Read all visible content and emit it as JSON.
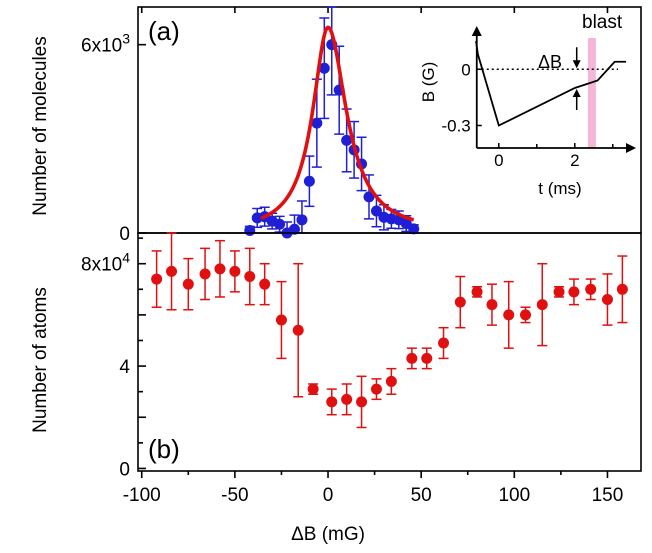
{
  "chart_data": [
    {
      "panel_label": "(a)",
      "type": "scatter",
      "ylabel": "Number of molecules",
      "ylim": [
        0,
        7200
      ],
      "xlim": [
        -102,
        168
      ],
      "y_ticks": [
        {
          "value": 0,
          "label": "0"
        },
        {
          "value": 6000,
          "label": "6x10^3"
        }
      ],
      "grid": false,
      "series": [
        {
          "kind": "points_with_error_bars",
          "color": "#1f1fd6",
          "x": [
            -42,
            -38,
            -34,
            -30,
            -26,
            -22,
            -18,
            -14,
            -10,
            -6,
            -2,
            2,
            6,
            10,
            14,
            18,
            22,
            26,
            30,
            34,
            38,
            42,
            46
          ],
          "y": [
            80,
            480,
            520,
            380,
            280,
            0,
            120,
            420,
            1650,
            3500,
            5250,
            6000,
            4550,
            2950,
            2650,
            2200,
            1150,
            700,
            500,
            450,
            420,
            300,
            130
          ],
          "yerr": [
            130,
            300,
            300,
            250,
            250,
            350,
            450,
            600,
            800,
            1400,
            1600,
            1600,
            1400,
            1000,
            900,
            850,
            700,
            500,
            400,
            300,
            280,
            250,
            130
          ]
        },
        {
          "kind": "fit_curve",
          "color": "#e01010",
          "center": 0,
          "amplitude": 6550,
          "width_left": 10,
          "width_right": 12
        }
      ],
      "inset": {
        "title": "blast",
        "xlabel": "t (ms)",
        "ylabel": "B (G)",
        "annotation": "ΔB",
        "x_ticks": [
          {
            "value": 0,
            "label": "0"
          },
          {
            "value": 2,
            "label": "2"
          }
        ],
        "y_ticks": [
          {
            "value": 0,
            "label": "0"
          },
          {
            "value": -0.3,
            "label": "-0.3"
          }
        ],
        "xlim": [
          -0.6,
          3.4
        ],
        "ylim": [
          -0.42,
          0.22
        ],
        "blast_time": 2.45,
        "curve": {
          "t": [
            -0.6,
            -0.55,
            0.0,
            2.0,
            2.6,
            3.05,
            3.35
          ],
          "b": [
            0.15,
            0.08,
            -0.3,
            -0.1,
            -0.06,
            0.04,
            0.04
          ]
        },
        "reference_line_b": 0
      }
    },
    {
      "panel_label": "(b)",
      "type": "scatter",
      "xlabel": "ΔB (mG)",
      "ylabel": "Number of atoms",
      "xlim": [
        -102,
        168
      ],
      "ylim": [
        -0.1,
        9.2
      ],
      "y_unit_note": "values in units of 10^4",
      "y_ticks": [
        {
          "value": 0,
          "label": "0"
        },
        {
          "value": 4,
          "label": "4"
        },
        {
          "value": 8,
          "label": "8x10^4"
        }
      ],
      "x_ticks": [
        {
          "value": -100,
          "label": "-100"
        },
        {
          "value": -50,
          "label": "-50"
        },
        {
          "value": 0,
          "label": "0"
        },
        {
          "value": 50,
          "label": "50"
        },
        {
          "value": 100,
          "label": "100"
        },
        {
          "value": 150,
          "label": "150"
        }
      ],
      "grid": false,
      "series": [
        {
          "kind": "points_with_error_bars",
          "color": "#e01010",
          "x": [
            -92,
            -84,
            -75,
            -66,
            -58,
            -50,
            -42,
            -34,
            -25,
            -16,
            -8,
            2,
            10,
            18,
            26,
            34,
            45,
            53,
            62,
            71,
            80,
            88,
            97,
            106,
            115,
            124,
            132,
            141,
            150,
            158
          ],
          "y": [
            7.4,
            7.7,
            7.2,
            7.6,
            7.8,
            7.7,
            7.5,
            7.2,
            5.8,
            5.4,
            3.1,
            2.6,
            2.7,
            2.6,
            3.1,
            3.4,
            4.3,
            4.3,
            4.9,
            6.5,
            6.9,
            6.4,
            6.0,
            6.0,
            6.4,
            6.9,
            6.9,
            7.0,
            6.6,
            7.0
          ],
          "yerr": [
            1.1,
            1.5,
            1.0,
            1.0,
            1.1,
            0.8,
            1.1,
            0.8,
            1.5,
            2.6,
            0.2,
            0.5,
            0.6,
            1.0,
            0.4,
            0.5,
            0.4,
            0.4,
            0.6,
            1.0,
            0.2,
            0.8,
            1.3,
            0.3,
            1.6,
            0.2,
            0.5,
            0.4,
            1.0,
            1.3
          ]
        }
      ]
    }
  ]
}
